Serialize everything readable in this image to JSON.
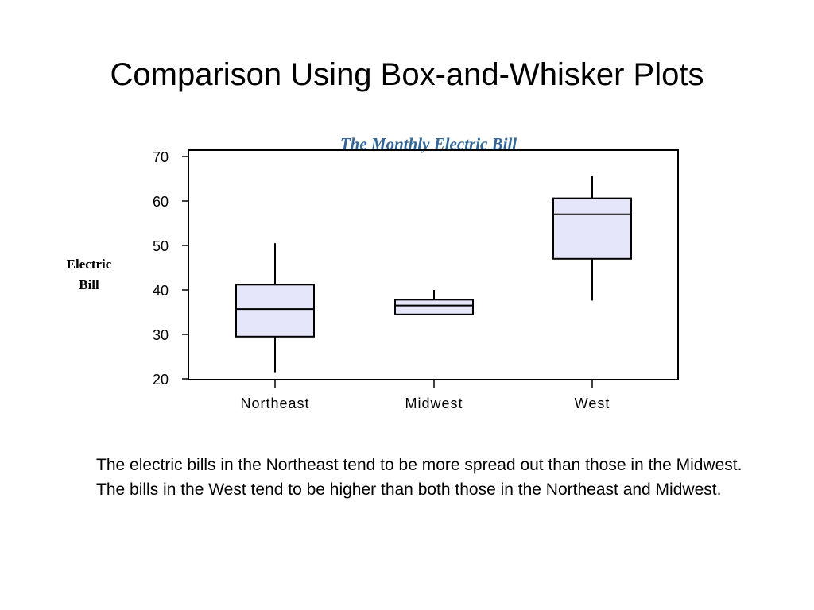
{
  "slide": {
    "title": "Comparison Using Box-and-Whisker Plots",
    "caption": "The electric bills in the Northeast tend to be more spread out than those in the Midwest. The bills in the West tend to be higher than both those in the Northeast and Midwest."
  },
  "chart_data": {
    "type": "boxplot",
    "title": "The Monthly Electric Bill",
    "ylabel": "Electric Bill",
    "xlabel": "",
    "ylim": [
      20,
      70
    ],
    "yticks": [
      20,
      30,
      40,
      50,
      60,
      70
    ],
    "grid": false,
    "categories": [
      "Northeast",
      "Midwest",
      "West"
    ],
    "boxes": [
      {
        "category": "Northeast",
        "min": 21.5,
        "q1": 29.5,
        "median": 35.7,
        "q3": 41.2,
        "max": 50.5
      },
      {
        "category": "Midwest",
        "min": 34.5,
        "q1": 34.5,
        "median": 36.5,
        "q3": 37.8,
        "max": 40.0
      },
      {
        "category": "West",
        "min": 37.6,
        "q1": 47.0,
        "median": 57.0,
        "q3": 60.6,
        "max": 65.6
      }
    ],
    "colors": {
      "box_fill": "#e6e6fa",
      "stroke": "#000000",
      "title": "#336699"
    }
  }
}
